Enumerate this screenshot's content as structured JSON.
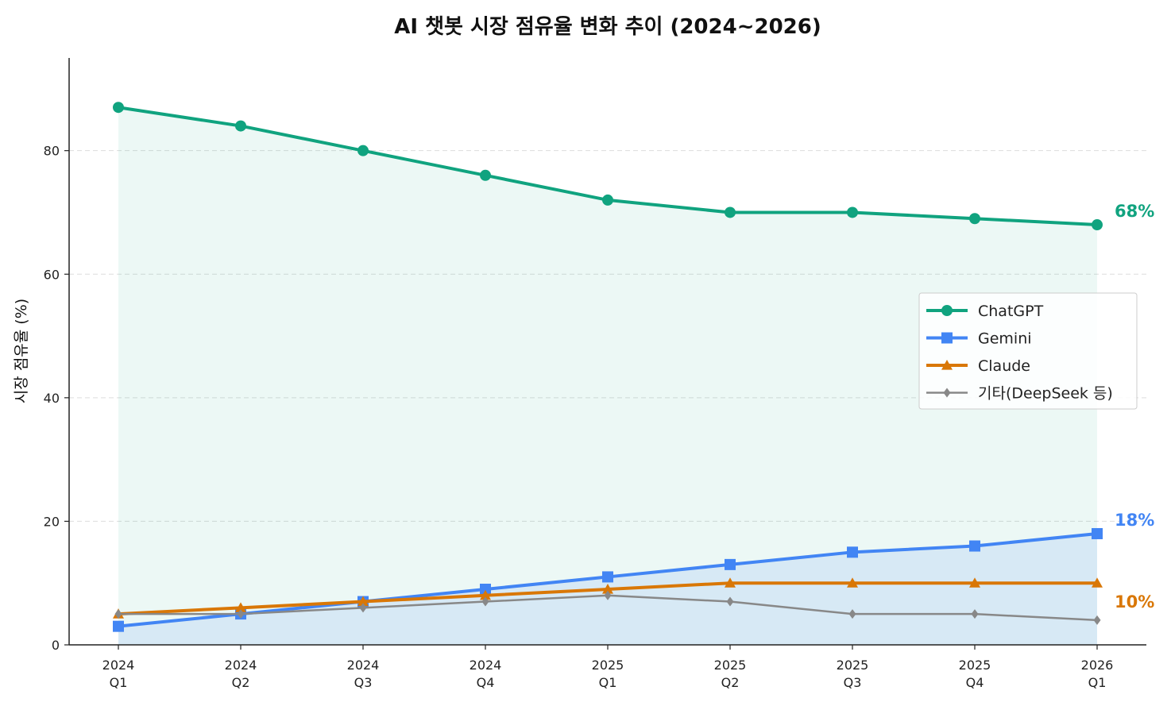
{
  "chart_data": {
    "type": "line",
    "title": "AI 챗봇 시장 점유율 변화 추이 (2024~2026)",
    "xlabel": "",
    "ylabel": "시장 점유율 (%)",
    "categories": [
      "2024\nQ1",
      "2024\nQ2",
      "2024\nQ3",
      "2024\nQ4",
      "2025\nQ1",
      "2025\nQ2",
      "2025\nQ3",
      "2025\nQ4",
      "2026\nQ1"
    ],
    "ylim": [
      0,
      95
    ],
    "yticks": [
      0,
      20,
      40,
      60,
      80
    ],
    "grid": "y-dashed",
    "legend_position": "center-right",
    "series": [
      {
        "name": "ChatGPT",
        "values": [
          87,
          84,
          80,
          76,
          72,
          70,
          70,
          69,
          68
        ],
        "color": "#10a37f",
        "marker": "circle",
        "fill": true,
        "end_label": "68%"
      },
      {
        "name": "Gemini",
        "values": [
          3,
          5,
          7,
          9,
          11,
          13,
          15,
          16,
          18
        ],
        "color": "#4285f4",
        "marker": "square",
        "fill": true,
        "end_label": "18%"
      },
      {
        "name": "Claude",
        "values": [
          5,
          6,
          7,
          8,
          9,
          10,
          10,
          10,
          10
        ],
        "color": "#d97706",
        "marker": "triangle",
        "fill": false,
        "end_label": "10%"
      },
      {
        "name": "기타(DeepSeek 등)",
        "values": [
          5,
          5,
          6,
          7,
          8,
          7,
          5,
          5,
          4
        ],
        "color": "#888888",
        "marker": "diamond",
        "fill": false
      }
    ]
  }
}
